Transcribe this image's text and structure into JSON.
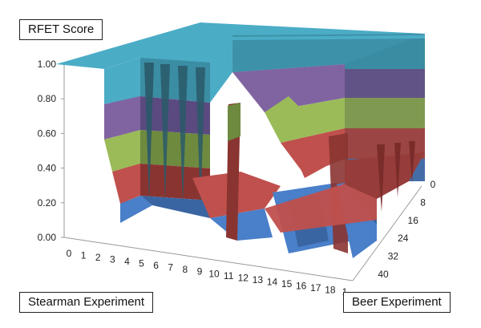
{
  "chart_data": {
    "type": "surface",
    "title": "RFET Score",
    "xlabel": "Stearman Experiment",
    "zlabel": "Beer Experiment",
    "ylim": [
      0,
      1
    ],
    "y_ticks": [
      "0.00",
      "0.20",
      "0.40",
      "0.60",
      "0.80",
      "1.00"
    ],
    "x_ticks": [
      "0",
      "1",
      "2",
      "3",
      "4",
      "5",
      "6",
      "7",
      "8",
      "9",
      "10",
      "11",
      "12",
      "13",
      "14",
      "15",
      "16",
      "17",
      "18",
      "1"
    ],
    "z_ticks": [
      "0",
      "8",
      "16",
      "24",
      "32",
      "40"
    ],
    "bands": [
      {
        "range": "0.00-0.20",
        "color": "#4a7fc9"
      },
      {
        "range": "0.20-0.40",
        "color": "#c0504d"
      },
      {
        "range": "0.40-0.60",
        "color": "#9bbb59"
      },
      {
        "range": "0.60-0.80",
        "color": "#8064a2"
      },
      {
        "range": "0.80-1.00",
        "color": "#4bacc6"
      }
    ]
  }
}
